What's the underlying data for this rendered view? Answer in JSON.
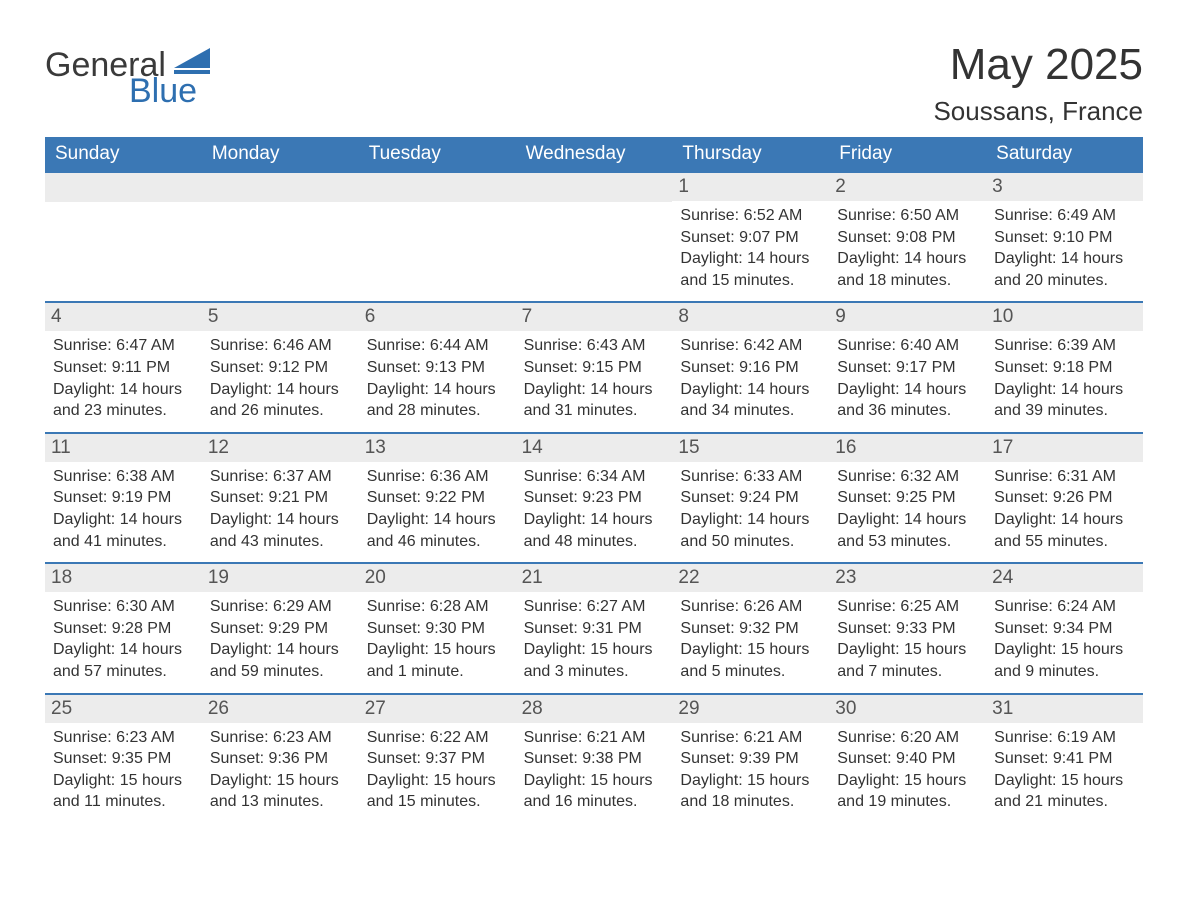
{
  "logo": {
    "text1": "General",
    "text2": "Blue",
    "color_dark": "#3a3a3a",
    "color_blue": "#2e6fb0"
  },
  "title": {
    "month": "May 2025",
    "location": "Soussans, France"
  },
  "colors": {
    "header_bg": "#3b78b5",
    "header_fg": "#ffffff",
    "daynum_bg": "#ececec",
    "daynum_fg": "#555555",
    "border": "#3b78b5",
    "text": "#333333",
    "background": "#ffffff"
  },
  "day_headers": [
    "Sunday",
    "Monday",
    "Tuesday",
    "Wednesday",
    "Thursday",
    "Friday",
    "Saturday"
  ],
  "weeks": [
    [
      {
        "empty": true
      },
      {
        "empty": true
      },
      {
        "empty": true
      },
      {
        "empty": true
      },
      {
        "day": "1",
        "sunrise": "Sunrise: 6:52 AM",
        "sunset": "Sunset: 9:07 PM",
        "daylight": "Daylight: 14 hours and 15 minutes."
      },
      {
        "day": "2",
        "sunrise": "Sunrise: 6:50 AM",
        "sunset": "Sunset: 9:08 PM",
        "daylight": "Daylight: 14 hours and 18 minutes."
      },
      {
        "day": "3",
        "sunrise": "Sunrise: 6:49 AM",
        "sunset": "Sunset: 9:10 PM",
        "daylight": "Daylight: 14 hours and 20 minutes."
      }
    ],
    [
      {
        "day": "4",
        "sunrise": "Sunrise: 6:47 AM",
        "sunset": "Sunset: 9:11 PM",
        "daylight": "Daylight: 14 hours and 23 minutes."
      },
      {
        "day": "5",
        "sunrise": "Sunrise: 6:46 AM",
        "sunset": "Sunset: 9:12 PM",
        "daylight": "Daylight: 14 hours and 26 minutes."
      },
      {
        "day": "6",
        "sunrise": "Sunrise: 6:44 AM",
        "sunset": "Sunset: 9:13 PM",
        "daylight": "Daylight: 14 hours and 28 minutes."
      },
      {
        "day": "7",
        "sunrise": "Sunrise: 6:43 AM",
        "sunset": "Sunset: 9:15 PM",
        "daylight": "Daylight: 14 hours and 31 minutes."
      },
      {
        "day": "8",
        "sunrise": "Sunrise: 6:42 AM",
        "sunset": "Sunset: 9:16 PM",
        "daylight": "Daylight: 14 hours and 34 minutes."
      },
      {
        "day": "9",
        "sunrise": "Sunrise: 6:40 AM",
        "sunset": "Sunset: 9:17 PM",
        "daylight": "Daylight: 14 hours and 36 minutes."
      },
      {
        "day": "10",
        "sunrise": "Sunrise: 6:39 AM",
        "sunset": "Sunset: 9:18 PM",
        "daylight": "Daylight: 14 hours and 39 minutes."
      }
    ],
    [
      {
        "day": "11",
        "sunrise": "Sunrise: 6:38 AM",
        "sunset": "Sunset: 9:19 PM",
        "daylight": "Daylight: 14 hours and 41 minutes."
      },
      {
        "day": "12",
        "sunrise": "Sunrise: 6:37 AM",
        "sunset": "Sunset: 9:21 PM",
        "daylight": "Daylight: 14 hours and 43 minutes."
      },
      {
        "day": "13",
        "sunrise": "Sunrise: 6:36 AM",
        "sunset": "Sunset: 9:22 PM",
        "daylight": "Daylight: 14 hours and 46 minutes."
      },
      {
        "day": "14",
        "sunrise": "Sunrise: 6:34 AM",
        "sunset": "Sunset: 9:23 PM",
        "daylight": "Daylight: 14 hours and 48 minutes."
      },
      {
        "day": "15",
        "sunrise": "Sunrise: 6:33 AM",
        "sunset": "Sunset: 9:24 PM",
        "daylight": "Daylight: 14 hours and 50 minutes."
      },
      {
        "day": "16",
        "sunrise": "Sunrise: 6:32 AM",
        "sunset": "Sunset: 9:25 PM",
        "daylight": "Daylight: 14 hours and 53 minutes."
      },
      {
        "day": "17",
        "sunrise": "Sunrise: 6:31 AM",
        "sunset": "Sunset: 9:26 PM",
        "daylight": "Daylight: 14 hours and 55 minutes."
      }
    ],
    [
      {
        "day": "18",
        "sunrise": "Sunrise: 6:30 AM",
        "sunset": "Sunset: 9:28 PM",
        "daylight": "Daylight: 14 hours and 57 minutes."
      },
      {
        "day": "19",
        "sunrise": "Sunrise: 6:29 AM",
        "sunset": "Sunset: 9:29 PM",
        "daylight": "Daylight: 14 hours and 59 minutes."
      },
      {
        "day": "20",
        "sunrise": "Sunrise: 6:28 AM",
        "sunset": "Sunset: 9:30 PM",
        "daylight": "Daylight: 15 hours and 1 minute."
      },
      {
        "day": "21",
        "sunrise": "Sunrise: 6:27 AM",
        "sunset": "Sunset: 9:31 PM",
        "daylight": "Daylight: 15 hours and 3 minutes."
      },
      {
        "day": "22",
        "sunrise": "Sunrise: 6:26 AM",
        "sunset": "Sunset: 9:32 PM",
        "daylight": "Daylight: 15 hours and 5 minutes."
      },
      {
        "day": "23",
        "sunrise": "Sunrise: 6:25 AM",
        "sunset": "Sunset: 9:33 PM",
        "daylight": "Daylight: 15 hours and 7 minutes."
      },
      {
        "day": "24",
        "sunrise": "Sunrise: 6:24 AM",
        "sunset": "Sunset: 9:34 PM",
        "daylight": "Daylight: 15 hours and 9 minutes."
      }
    ],
    [
      {
        "day": "25",
        "sunrise": "Sunrise: 6:23 AM",
        "sunset": "Sunset: 9:35 PM",
        "daylight": "Daylight: 15 hours and 11 minutes."
      },
      {
        "day": "26",
        "sunrise": "Sunrise: 6:23 AM",
        "sunset": "Sunset: 9:36 PM",
        "daylight": "Daylight: 15 hours and 13 minutes."
      },
      {
        "day": "27",
        "sunrise": "Sunrise: 6:22 AM",
        "sunset": "Sunset: 9:37 PM",
        "daylight": "Daylight: 15 hours and 15 minutes."
      },
      {
        "day": "28",
        "sunrise": "Sunrise: 6:21 AM",
        "sunset": "Sunset: 9:38 PM",
        "daylight": "Daylight: 15 hours and 16 minutes."
      },
      {
        "day": "29",
        "sunrise": "Sunrise: 6:21 AM",
        "sunset": "Sunset: 9:39 PM",
        "daylight": "Daylight: 15 hours and 18 minutes."
      },
      {
        "day": "30",
        "sunrise": "Sunrise: 6:20 AM",
        "sunset": "Sunset: 9:40 PM",
        "daylight": "Daylight: 15 hours and 19 minutes."
      },
      {
        "day": "31",
        "sunrise": "Sunrise: 6:19 AM",
        "sunset": "Sunset: 9:41 PM",
        "daylight": "Daylight: 15 hours and 21 minutes."
      }
    ]
  ]
}
